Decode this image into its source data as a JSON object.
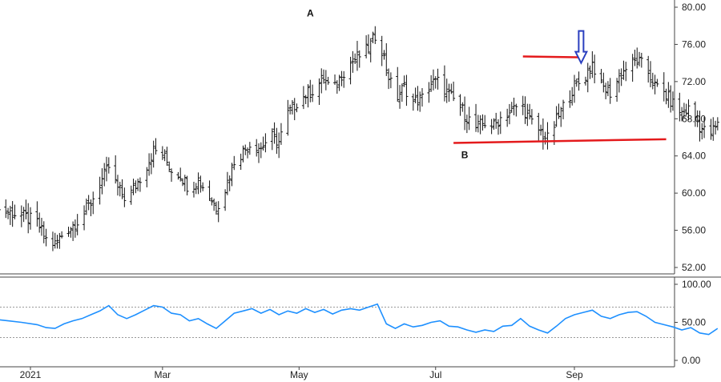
{
  "chart_data": [
    {
      "type": "ohlc",
      "panel": "price",
      "y_ticks": [
        "80.00",
        "76.00",
        "72.00",
        "68.00",
        "64.00",
        "60.00",
        "56.00",
        "52.00"
      ],
      "ylim": [
        51.5,
        80.5
      ],
      "x_ticks": [
        {
          "label": "2021",
          "date": "2021-01-01"
        },
        {
          "label": "Mar",
          "date": "2021-03-01"
        },
        {
          "label": "May",
          "date": "2021-05-01"
        },
        {
          "label": "Jul",
          "date": "2021-07-01"
        },
        {
          "label": "Sep",
          "date": "2021-09-01"
        }
      ],
      "grid": false,
      "annotations": {
        "label_a": "A",
        "label_b": "B",
        "point_a": {
          "date": "2021-05-06",
          "value": 78.5
        },
        "point_b": {
          "date": "2021-07-14",
          "value": 65.5
        },
        "resistance_line": {
          "start": [
            "2021-08-09",
            74.7
          ],
          "end": [
            "2021-09-05",
            74.6
          ],
          "color": "#e41a1c"
        },
        "support_line": {
          "start": [
            "2021-07-09",
            65.4
          ],
          "end": [
            "2021-10-12",
            65.8
          ],
          "color": "#e41a1c"
        },
        "arrow": {
          "date": "2021-09-04",
          "value": 74.0,
          "color": "#2a3fbf",
          "direction": "down"
        }
      },
      "closes": [
        {
          "date": "2020-12-16",
          "close": 58.2
        },
        {
          "date": "2020-12-22",
          "close": 58.0
        },
        {
          "date": "2020-12-28",
          "close": 57.6
        },
        {
          "date": "2021-01-04",
          "close": 56.8
        },
        {
          "date": "2021-01-08",
          "close": 55.0
        },
        {
          "date": "2021-01-12",
          "close": 54.5
        },
        {
          "date": "2021-01-16",
          "close": 55.8
        },
        {
          "date": "2021-01-20",
          "close": 56.6
        },
        {
          "date": "2021-01-24",
          "close": 57.5
        },
        {
          "date": "2021-01-28",
          "close": 59.0
        },
        {
          "date": "2021-02-01",
          "close": 61.0
        },
        {
          "date": "2021-02-05",
          "close": 62.8
        },
        {
          "date": "2021-02-09",
          "close": 60.5
        },
        {
          "date": "2021-02-13",
          "close": 59.3
        },
        {
          "date": "2021-02-17",
          "close": 60.8
        },
        {
          "date": "2021-02-21",
          "close": 62.5
        },
        {
          "date": "2021-02-25",
          "close": 64.6
        },
        {
          "date": "2021-03-01",
          "close": 64.2
        },
        {
          "date": "2021-03-05",
          "close": 62.5
        },
        {
          "date": "2021-03-09",
          "close": 62.0
        },
        {
          "date": "2021-03-13",
          "close": 60.5
        },
        {
          "date": "2021-03-17",
          "close": 61.5
        },
        {
          "date": "2021-03-21",
          "close": 60.0
        },
        {
          "date": "2021-03-25",
          "close": 58.5
        },
        {
          "date": "2021-03-29",
          "close": 60.5
        },
        {
          "date": "2021-04-02",
          "close": 63.5
        },
        {
          "date": "2021-04-06",
          "close": 64.5
        },
        {
          "date": "2021-04-10",
          "close": 65.5
        },
        {
          "date": "2021-04-14",
          "close": 64.8
        },
        {
          "date": "2021-04-18",
          "close": 66.2
        },
        {
          "date": "2021-04-22",
          "close": 65.5
        },
        {
          "date": "2021-04-26",
          "close": 68.5
        },
        {
          "date": "2021-04-30",
          "close": 69.8
        },
        {
          "date": "2021-05-04",
          "close": 70.6
        },
        {
          "date": "2021-05-08",
          "close": 71.2
        },
        {
          "date": "2021-05-12",
          "close": 72.4
        },
        {
          "date": "2021-05-16",
          "close": 70.8
        },
        {
          "date": "2021-05-20",
          "close": 72.8
        },
        {
          "date": "2021-05-24",
          "close": 74.0
        },
        {
          "date": "2021-05-28",
          "close": 74.8
        },
        {
          "date": "2021-06-01",
          "close": 75.5
        },
        {
          "date": "2021-06-05",
          "close": 77.5
        },
        {
          "date": "2021-06-09",
          "close": 73.5
        },
        {
          "date": "2021-06-13",
          "close": 70.0
        },
        {
          "date": "2021-06-17",
          "close": 71.5
        },
        {
          "date": "2021-06-21",
          "close": 69.8
        },
        {
          "date": "2021-06-25",
          "close": 70.2
        },
        {
          "date": "2021-06-29",
          "close": 71.8
        },
        {
          "date": "2021-07-03",
          "close": 72.0
        },
        {
          "date": "2021-07-07",
          "close": 70.5
        },
        {
          "date": "2021-07-11",
          "close": 69.6
        },
        {
          "date": "2021-07-15",
          "close": 68.2
        },
        {
          "date": "2021-07-19",
          "close": 67.0
        },
        {
          "date": "2021-07-23",
          "close": 67.6
        },
        {
          "date": "2021-07-27",
          "close": 67.2
        },
        {
          "date": "2021-07-31",
          "close": 68.4
        },
        {
          "date": "2021-08-04",
          "close": 68.8
        },
        {
          "date": "2021-08-08",
          "close": 69.8
        },
        {
          "date": "2021-08-12",
          "close": 67.8
        },
        {
          "date": "2021-08-16",
          "close": 66.8
        },
        {
          "date": "2021-08-20",
          "close": 65.8
        },
        {
          "date": "2021-08-24",
          "close": 67.8
        },
        {
          "date": "2021-08-28",
          "close": 69.8
        },
        {
          "date": "2021-09-01",
          "close": 71.5
        },
        {
          "date": "2021-09-05",
          "close": 72.2
        },
        {
          "date": "2021-09-09",
          "close": 74.0
        },
        {
          "date": "2021-09-13",
          "close": 71.5
        },
        {
          "date": "2021-09-17",
          "close": 70.8
        },
        {
          "date": "2021-09-21",
          "close": 72.5
        },
        {
          "date": "2021-09-25",
          "close": 73.8
        },
        {
          "date": "2021-09-29",
          "close": 74.2
        },
        {
          "date": "2021-10-03",
          "close": 73.5
        },
        {
          "date": "2021-10-07",
          "close": 71.5
        },
        {
          "date": "2021-10-11",
          "close": 70.8
        },
        {
          "date": "2021-10-15",
          "close": 69.6
        },
        {
          "date": "2021-10-19",
          "close": 68.6
        },
        {
          "date": "2021-10-23",
          "close": 69.2
        },
        {
          "date": "2021-10-27",
          "close": 67.2
        },
        {
          "date": "2021-10-31",
          "close": 66.2
        },
        {
          "date": "2021-11-04",
          "close": 67.3
        }
      ]
    },
    {
      "type": "line",
      "panel": "indicator",
      "y_ticks": [
        "100.00",
        "50.00",
        "0.00"
      ],
      "ylim": [
        0,
        100
      ],
      "reference_lines": [
        70,
        30
      ],
      "color": "#1e90ff",
      "values": [
        {
          "date": "2020-12-16",
          "value": 54
        },
        {
          "date": "2020-12-22",
          "value": 52
        },
        {
          "date": "2020-12-28",
          "value": 50
        },
        {
          "date": "2021-01-04",
          "value": 47
        },
        {
          "date": "2021-01-08",
          "value": 43
        },
        {
          "date": "2021-01-12",
          "value": 42
        },
        {
          "date": "2021-01-16",
          "value": 48
        },
        {
          "date": "2021-01-20",
          "value": 52
        },
        {
          "date": "2021-01-24",
          "value": 55
        },
        {
          "date": "2021-01-28",
          "value": 60
        },
        {
          "date": "2021-02-01",
          "value": 65
        },
        {
          "date": "2021-02-05",
          "value": 72
        },
        {
          "date": "2021-02-09",
          "value": 60
        },
        {
          "date": "2021-02-13",
          "value": 55
        },
        {
          "date": "2021-02-17",
          "value": 60
        },
        {
          "date": "2021-02-21",
          "value": 66
        },
        {
          "date": "2021-02-25",
          "value": 72
        },
        {
          "date": "2021-03-01",
          "value": 70
        },
        {
          "date": "2021-03-05",
          "value": 62
        },
        {
          "date": "2021-03-09",
          "value": 60
        },
        {
          "date": "2021-03-13",
          "value": 52
        },
        {
          "date": "2021-03-17",
          "value": 55
        },
        {
          "date": "2021-03-21",
          "value": 48
        },
        {
          "date": "2021-03-25",
          "value": 42
        },
        {
          "date": "2021-03-29",
          "value": 52
        },
        {
          "date": "2021-04-02",
          "value": 62
        },
        {
          "date": "2021-04-06",
          "value": 65
        },
        {
          "date": "2021-04-10",
          "value": 68
        },
        {
          "date": "2021-04-14",
          "value": 62
        },
        {
          "date": "2021-04-18",
          "value": 67
        },
        {
          "date": "2021-04-22",
          "value": 60
        },
        {
          "date": "2021-04-26",
          "value": 65
        },
        {
          "date": "2021-04-30",
          "value": 62
        },
        {
          "date": "2021-05-04",
          "value": 68
        },
        {
          "date": "2021-05-08",
          "value": 63
        },
        {
          "date": "2021-05-12",
          "value": 67
        },
        {
          "date": "2021-05-16",
          "value": 61
        },
        {
          "date": "2021-05-20",
          "value": 66
        },
        {
          "date": "2021-05-24",
          "value": 68
        },
        {
          "date": "2021-05-28",
          "value": 66
        },
        {
          "date": "2021-06-01",
          "value": 70
        },
        {
          "date": "2021-06-05",
          "value": 74
        },
        {
          "date": "2021-06-09",
          "value": 48
        },
        {
          "date": "2021-06-13",
          "value": 42
        },
        {
          "date": "2021-06-17",
          "value": 48
        },
        {
          "date": "2021-06-21",
          "value": 44
        },
        {
          "date": "2021-06-25",
          "value": 46
        },
        {
          "date": "2021-06-29",
          "value": 50
        },
        {
          "date": "2021-07-03",
          "value": 52
        },
        {
          "date": "2021-07-07",
          "value": 45
        },
        {
          "date": "2021-07-11",
          "value": 44
        },
        {
          "date": "2021-07-15",
          "value": 40
        },
        {
          "date": "2021-07-19",
          "value": 37
        },
        {
          "date": "2021-07-23",
          "value": 40
        },
        {
          "date": "2021-07-27",
          "value": 38
        },
        {
          "date": "2021-07-31",
          "value": 45
        },
        {
          "date": "2021-08-04",
          "value": 46
        },
        {
          "date": "2021-08-08",
          "value": 55
        },
        {
          "date": "2021-08-12",
          "value": 45
        },
        {
          "date": "2021-08-16",
          "value": 40
        },
        {
          "date": "2021-08-20",
          "value": 36
        },
        {
          "date": "2021-08-24",
          "value": 45
        },
        {
          "date": "2021-08-28",
          "value": 55
        },
        {
          "date": "2021-09-01",
          "value": 60
        },
        {
          "date": "2021-09-05",
          "value": 63
        },
        {
          "date": "2021-09-09",
          "value": 66
        },
        {
          "date": "2021-09-13",
          "value": 58
        },
        {
          "date": "2021-09-17",
          "value": 55
        },
        {
          "date": "2021-09-21",
          "value": 60
        },
        {
          "date": "2021-09-25",
          "value": 63
        },
        {
          "date": "2021-09-29",
          "value": 64
        },
        {
          "date": "2021-10-03",
          "value": 58
        },
        {
          "date": "2021-10-07",
          "value": 50
        },
        {
          "date": "2021-10-11",
          "value": 47
        },
        {
          "date": "2021-10-15",
          "value": 44
        },
        {
          "date": "2021-10-19",
          "value": 40
        },
        {
          "date": "2021-10-23",
          "value": 43
        },
        {
          "date": "2021-10-27",
          "value": 36
        },
        {
          "date": "2021-10-31",
          "value": 34
        },
        {
          "date": "2021-11-04",
          "value": 42
        }
      ]
    }
  ]
}
